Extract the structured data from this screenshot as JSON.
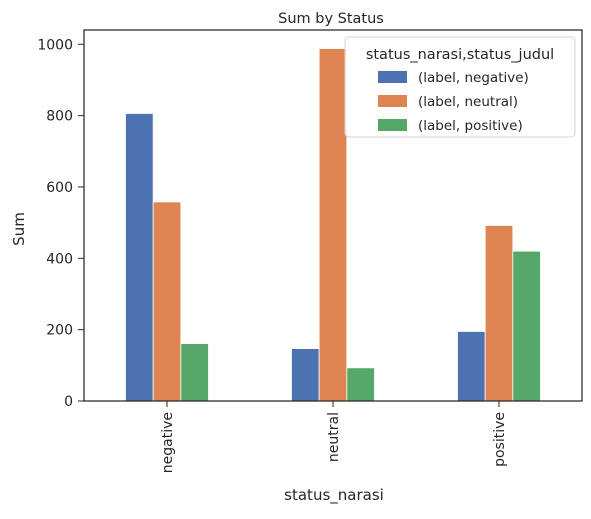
{
  "chart_data": {
    "type": "bar",
    "title": "Sum by Status",
    "xlabel": "status_narasi",
    "ylabel": "Sum",
    "categories": [
      "negative",
      "neutral",
      "positive"
    ],
    "series": [
      {
        "name": "(label, negative)",
        "values": [
          806,
          147,
          195
        ],
        "color": "#4c72b0"
      },
      {
        "name": "(label, neutral)",
        "values": [
          558,
          988,
          492
        ],
        "color": "#dd8452"
      },
      {
        "name": "(label, positive)",
        "values": [
          161,
          93,
          420
        ],
        "color": "#55a868"
      }
    ],
    "ylim": [
      0,
      1040
    ],
    "yticks": [
      0,
      200,
      400,
      600,
      800,
      1000
    ],
    "legend": {
      "title": "status_narasi,status_judul",
      "placement": "top-right"
    },
    "grid": false
  }
}
